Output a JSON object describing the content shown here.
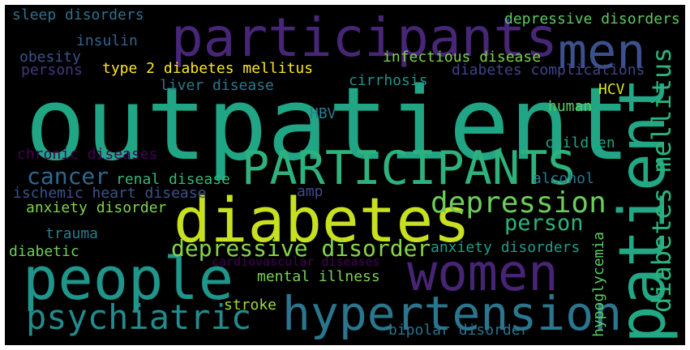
{
  "colors": {
    "background": "#000000",
    "frame": "#ffffff"
  },
  "words": [
    {
      "id": "outpatient",
      "text": "outpatient",
      "color": "#21a685"
    },
    {
      "id": "participants-lower",
      "text": "participants",
      "color": "#482677"
    },
    {
      "id": "men",
      "text": "men",
      "color": "#3b518b"
    },
    {
      "id": "diabetes",
      "text": "diabetes",
      "color": "#c7e020"
    },
    {
      "id": "PARTICIPANTS-upper",
      "text": "PARTICIPANTS",
      "color": "#2db27d"
    },
    {
      "id": "people",
      "text": "people",
      "color": "#1f968b"
    },
    {
      "id": "patient",
      "text": "patient",
      "color": "#22a884"
    },
    {
      "id": "women",
      "text": "women",
      "color": "#482475"
    },
    {
      "id": "hypertension",
      "text": "hypertension",
      "color": "#2a768e"
    },
    {
      "id": "psychiatric",
      "text": "psychiatric",
      "color": "#238a8d"
    },
    {
      "id": "depression",
      "text": "depression",
      "color": "#6ccd5a"
    },
    {
      "id": "diabetes-mellitus",
      "text": "diabetes mellitus",
      "color": "#2db27d"
    },
    {
      "id": "depressive-disorder",
      "text": "depressive disorder",
      "color": "#86d549"
    },
    {
      "id": "cancer",
      "text": "cancer",
      "color": "#31678e"
    },
    {
      "id": "person",
      "text": "person",
      "color": "#2db27d"
    },
    {
      "id": "type-2-diabetes-mellitus",
      "text": "type 2 diabetes mellitus",
      "color": "#fde725"
    },
    {
      "id": "infectious-disease",
      "text": "infectious disease",
      "color": "#7ad151"
    },
    {
      "id": "depressive-disorders",
      "text": "depressive disorders",
      "color": "#5ec962"
    },
    {
      "id": "sleep-disorders",
      "text": "sleep disorders",
      "color": "#2c728e"
    },
    {
      "id": "insulin",
      "text": "insulin",
      "color": "#33638d"
    },
    {
      "id": "obesity",
      "text": "obesity",
      "color": "#3b528b"
    },
    {
      "id": "persons",
      "text": "persons",
      "color": "#453781"
    },
    {
      "id": "diabetes-complications",
      "text": "diabetes complications",
      "color": "#414487"
    },
    {
      "id": "liver-disease",
      "text": "liver disease",
      "color": "#2a788e"
    },
    {
      "id": "cirrhosis",
      "text": "cirrhosis",
      "color": "#21918c"
    },
    {
      "id": "HCV",
      "text": "HCV",
      "color": "#d8e219"
    },
    {
      "id": "HBV",
      "text": "HBV",
      "color": "#287c8e"
    },
    {
      "id": "human",
      "text": "human",
      "color": "#5ec962"
    },
    {
      "id": "chronic-diseases",
      "text": "chronic diseases",
      "color": "#440154"
    },
    {
      "id": "children",
      "text": "children",
      "color": "#20a486"
    },
    {
      "id": "renal-disease",
      "text": "renal disease",
      "color": "#35b779"
    },
    {
      "id": "alcohol",
      "text": "alcohol",
      "color": "#2a788e"
    },
    {
      "id": "amp",
      "text": "amp",
      "color": "#3e4a89"
    },
    {
      "id": "ischemic-heart-disease",
      "text": "ischemic heart disease",
      "color": "#3b528b"
    },
    {
      "id": "anxiety-disorder",
      "text": "anxiety disorder",
      "color": "#7fd34e"
    },
    {
      "id": "trauma",
      "text": "trauma",
      "color": "#287c8e"
    },
    {
      "id": "diabetic",
      "text": "diabetic",
      "color": "#6ece58"
    },
    {
      "id": "anxiety-disorders",
      "text": "anxiety disorders",
      "color": "#1f9e89"
    },
    {
      "id": "cardiovascular-diseases",
      "text": "cardiovascular diseases",
      "color": "#440154"
    },
    {
      "id": "mental-illness",
      "text": "mental illness",
      "color": "#7ad151"
    },
    {
      "id": "hypoglycemia",
      "text": "hypoglycemia",
      "color": "#5ec962"
    },
    {
      "id": "stroke",
      "text": "stroke",
      "color": "#a0da39"
    },
    {
      "id": "bipolar-disorder",
      "text": "bipolar disorder",
      "color": "#2c728e"
    }
  ]
}
